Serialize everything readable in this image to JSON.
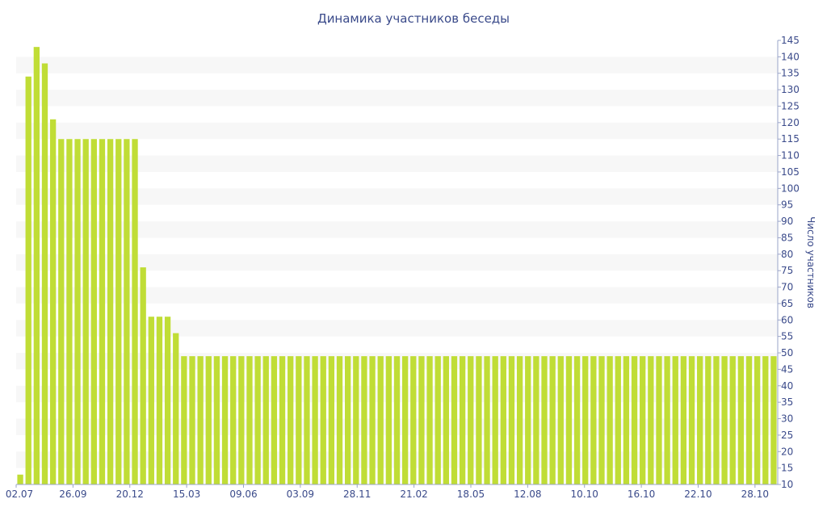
{
  "chart_data": {
    "type": "bar",
    "title": "Динамика участников беседы",
    "ylabel": "Число участников",
    "xlabel": "",
    "ylim": [
      10,
      145
    ],
    "y_tick_step": 5,
    "x_tick_labels": [
      "02.07",
      "26.09",
      "20.12",
      "15.03",
      "09.06",
      "03.09",
      "28.11",
      "21.02",
      "18.05",
      "12.08",
      "10.10",
      "16.10",
      "22.10",
      "28.10"
    ],
    "values": [
      13,
      134,
      143,
      138,
      121,
      115,
      115,
      115,
      115,
      115,
      115,
      115,
      115,
      115,
      115,
      76,
      61,
      61,
      61,
      56,
      49,
      49,
      49,
      49,
      49,
      49,
      49,
      49,
      49,
      49,
      49,
      49,
      49,
      49,
      49,
      49,
      49,
      49,
      49,
      49,
      49,
      49,
      49,
      49,
      49,
      49,
      49,
      49,
      49,
      49,
      49,
      49,
      49,
      49,
      49,
      49,
      49,
      49,
      49,
      49,
      49,
      49,
      49,
      49,
      49,
      49,
      49,
      49,
      49,
      49,
      49,
      49,
      49,
      49,
      49,
      49,
      49,
      49,
      49,
      49,
      49,
      49,
      49,
      49,
      49,
      49,
      49,
      49,
      49,
      49,
      49,
      49,
      49
    ],
    "bar_color": "#c0dd36",
    "stripe_color": "#f7f7f7",
    "axis_color": "#9aa4c8",
    "text_color": "#3a4a8a",
    "grid": "horizontal-stripes",
    "y_axis_position": "right"
  }
}
